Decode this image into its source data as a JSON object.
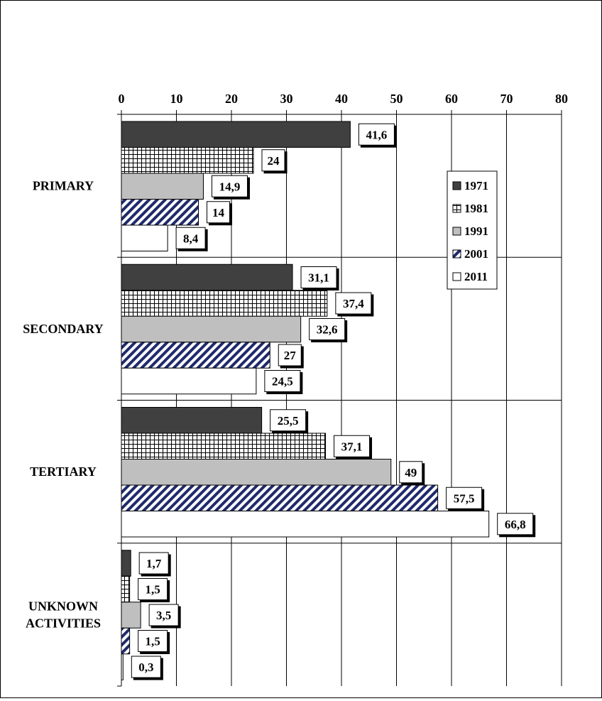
{
  "chart_data": {
    "type": "bar",
    "orientation": "horizontal",
    "categories": [
      "PRIMARY",
      "SECONDARY",
      "TERTIARY",
      "UNKNOWN ACTIVITIES"
    ],
    "series": [
      {
        "name": "1971",
        "values": [
          41.6,
          31.1,
          25.5,
          1.7
        ],
        "labels": [
          "41,6",
          "31,1",
          "25,5",
          "1,7"
        ],
        "fill": "#404040",
        "pattern": "solid"
      },
      {
        "name": "1981",
        "values": [
          24,
          37.4,
          37.1,
          1.5
        ],
        "labels": [
          "24",
          "37,4",
          "37,1",
          "1,5"
        ],
        "fill": "#ffffff",
        "pattern": "grid"
      },
      {
        "name": "1991",
        "values": [
          14.9,
          32.6,
          49,
          3.5
        ],
        "labels": [
          "14,9",
          "32,6",
          "49",
          "3,5"
        ],
        "fill": "#bfbfbf",
        "pattern": "solid"
      },
      {
        "name": "2001",
        "values": [
          14,
          27,
          57.5,
          1.5
        ],
        "labels": [
          "14",
          "27",
          "57,5",
          "1,5"
        ],
        "fill": "#1f2a6b",
        "pattern": "diagonal"
      },
      {
        "name": "2011",
        "values": [
          8.4,
          24.5,
          66.8,
          0.3
        ],
        "labels": [
          "8,4",
          "24,5",
          "66,8",
          "0,3"
        ],
        "fill": "#ffffff",
        "pattern": "solid"
      }
    ],
    "xticks": [
      "0",
      "10",
      "20",
      "30",
      "40",
      "50",
      "60",
      "70",
      "80"
    ],
    "xlim": [
      0,
      80
    ],
    "x_axis_position": "top",
    "grid": true,
    "legend_position": "right",
    "title": "",
    "xlabel": "",
    "ylabel": ""
  }
}
